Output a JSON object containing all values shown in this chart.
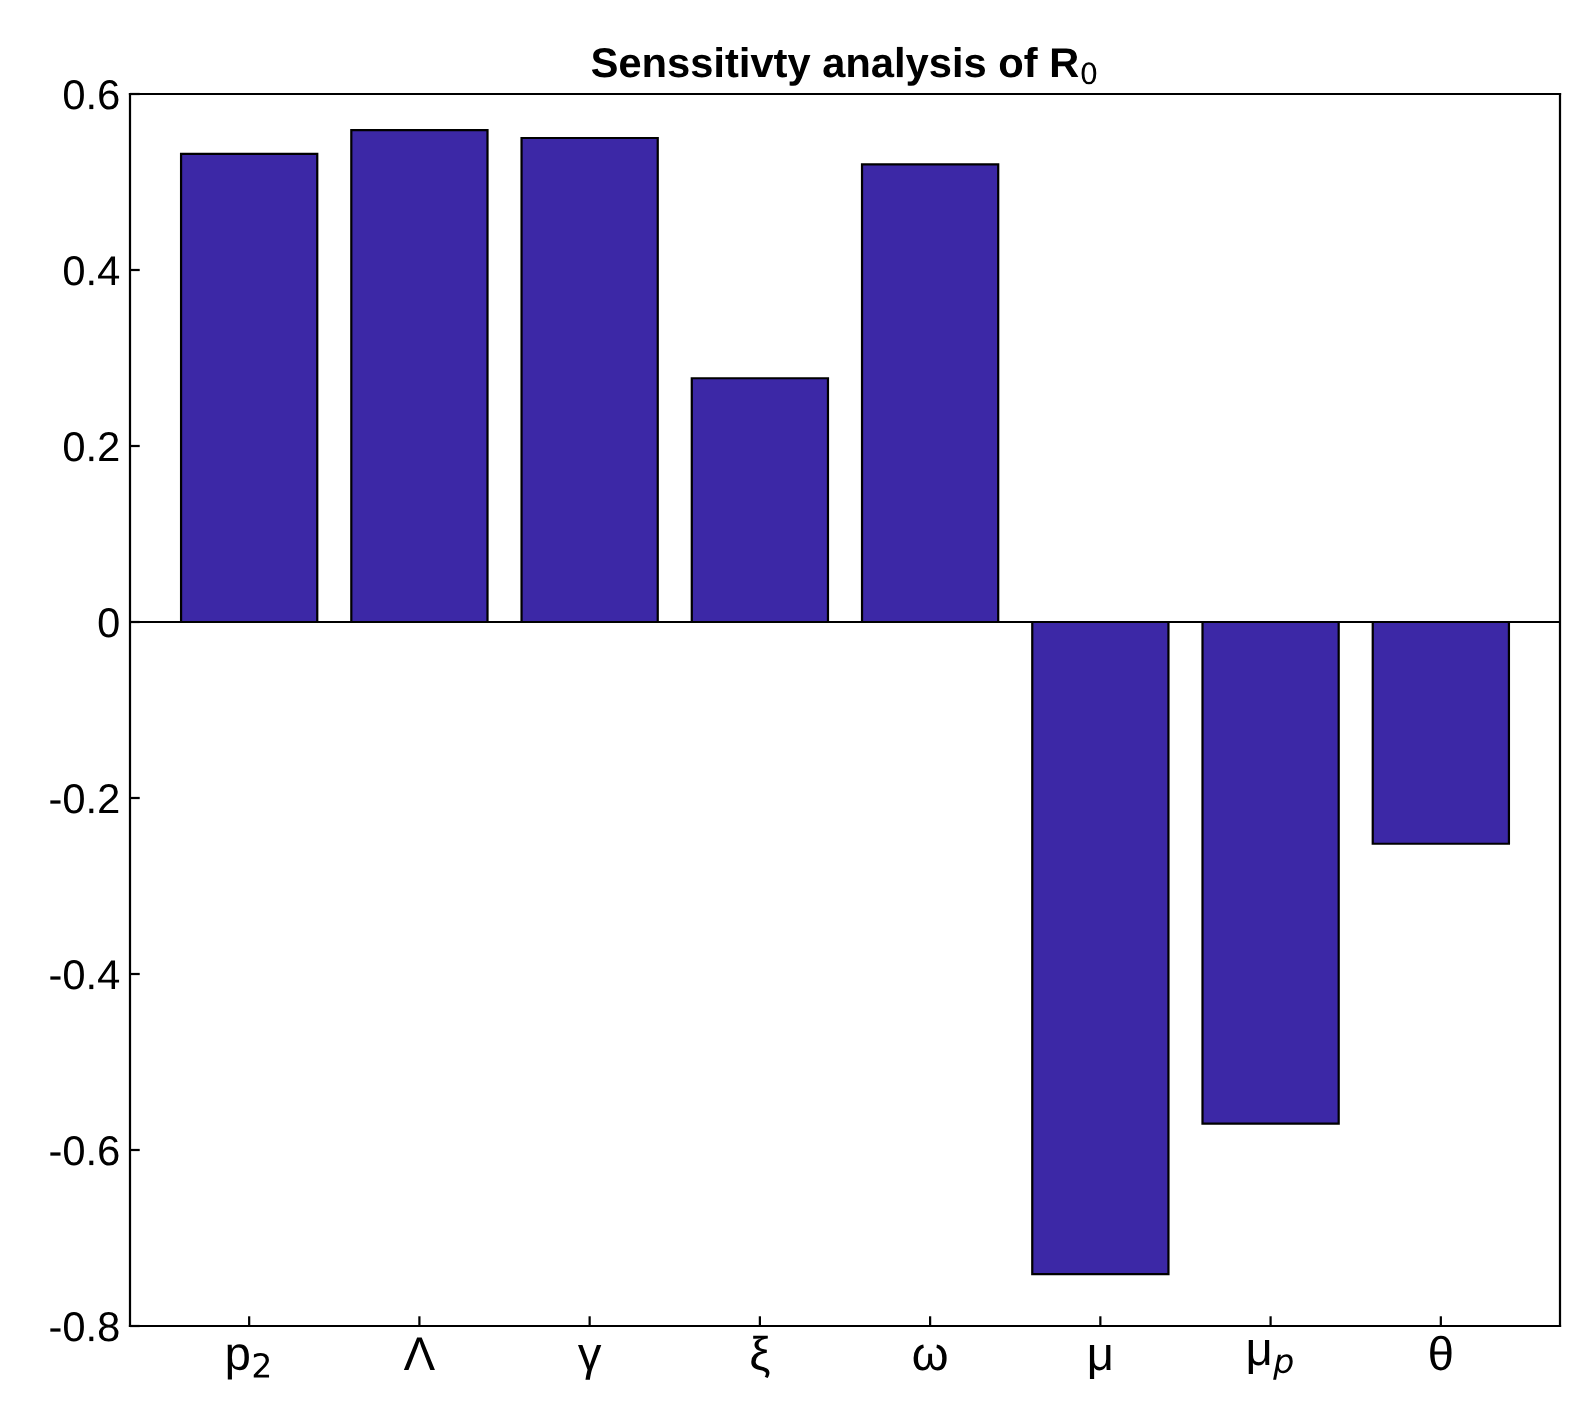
{
  "chart_data": {
    "type": "bar",
    "title": "Senssitivty analysis of R$_{0}$",
    "categories": [
      "p$_{2}$",
      "Λ",
      "γ",
      "ξ",
      "ω",
      "μ",
      "μ$_{p}$",
      "θ"
    ],
    "values": [
      0.532,
      0.559,
      0.55,
      0.277,
      0.52,
      -0.741,
      -0.57,
      -0.252
    ],
    "color": "#3c28a6",
    "ylim": [
      -0.8,
      0.6
    ],
    "yticks": [
      -0.8,
      -0.6,
      -0.4,
      -0.2,
      0,
      0.2,
      0.4,
      0.6
    ],
    "ref_lines": [
      {
        "axis": "y",
        "value": 0,
        "color": "#000000"
      }
    ],
    "legend": false
  }
}
